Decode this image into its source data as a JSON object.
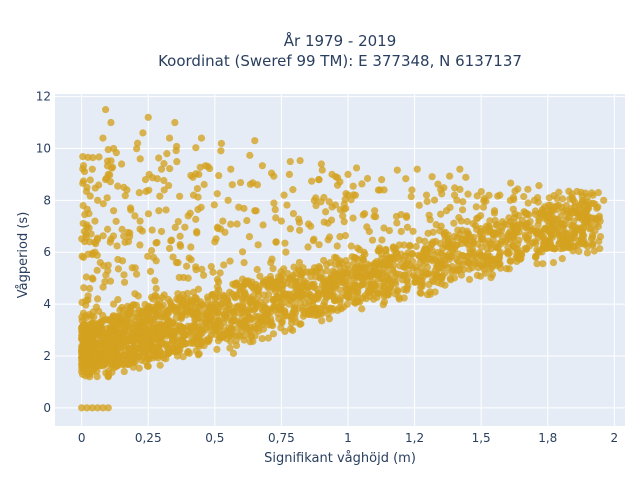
{
  "chart_data": {
    "type": "scatter",
    "title_lines": [
      "År 1979 - 2019",
      "Koordinat (Sweref 99 TM): E 377348, N 6137137"
    ],
    "xlabel": "Signifikant våghöjd (m)",
    "ylabel": "Vågperiod (s)",
    "xlim": [
      -0.1,
      2.04
    ],
    "ylim": [
      -0.7,
      12.1
    ],
    "x_ticks": [
      {
        "value": 0,
        "label": "0"
      },
      {
        "value": 0.25,
        "label": "0,25"
      },
      {
        "value": 0.5,
        "label": "0,5"
      },
      {
        "value": 0.75,
        "label": "0,75"
      },
      {
        "value": 1,
        "label": "1"
      },
      {
        "value": 1.25,
        "label": "1,2"
      },
      {
        "value": 1.5,
        "label": "1,5"
      },
      {
        "value": 1.75,
        "label": "1,8"
      },
      {
        "value": 2,
        "label": "2"
      }
    ],
    "y_ticks": [
      {
        "value": 0,
        "label": "0"
      },
      {
        "value": 2,
        "label": "2"
      },
      {
        "value": 4,
        "label": "4"
      },
      {
        "value": 6,
        "label": "6"
      },
      {
        "value": 8,
        "label": "8"
      },
      {
        "value": 10,
        "label": "10"
      },
      {
        "value": 12,
        "label": "12"
      }
    ],
    "grid": true,
    "marker_color": "#d4a21f",
    "marker_opacity": 0.78,
    "plot_bg": "#e5ecf6",
    "grid_color": "#ffffff",
    "points": [
      [
        0.0,
        0.0
      ],
      [
        0.02,
        0.0
      ],
      [
        0.04,
        0.0
      ],
      [
        0.06,
        0.0
      ],
      [
        0.08,
        0.0
      ],
      [
        0.1,
        0.0
      ],
      [
        0.0,
        1.4
      ],
      [
        0.02,
        1.8
      ],
      [
        0.03,
        1.2
      ],
      [
        0.05,
        2.4
      ],
      [
        0.02,
        3.1
      ],
      [
        0.06,
        4.2
      ],
      [
        0.04,
        5.0
      ],
      [
        0.03,
        6.4
      ],
      [
        0.05,
        7.2
      ],
      [
        0.02,
        8.5
      ],
      [
        0.04,
        9.2
      ],
      [
        0.06,
        8.0
      ],
      [
        0.03,
        4.6
      ],
      [
        0.05,
        6.0
      ],
      [
        0.01,
        6.8
      ],
      [
        0.07,
        5.6
      ],
      [
        0.1,
        1.2
      ],
      [
        0.1,
        2.0
      ],
      [
        0.11,
        3.0
      ],
      [
        0.12,
        4.0
      ],
      [
        0.1,
        5.5
      ],
      [
        0.11,
        6.5
      ],
      [
        0.12,
        7.6
      ],
      [
        0.1,
        9.0
      ],
      [
        0.08,
        10.4
      ],
      [
        0.09,
        11.5
      ],
      [
        0.11,
        11.0
      ],
      [
        0.12,
        10.0
      ],
      [
        0.09,
        8.8
      ],
      [
        0.13,
        1.6
      ],
      [
        0.14,
        2.8
      ],
      [
        0.15,
        9.4
      ],
      [
        0.16,
        1.4
      ],
      [
        0.18,
        2.2
      ],
      [
        0.17,
        3.4
      ],
      [
        0.2,
        4.4
      ],
      [
        0.19,
        5.4
      ],
      [
        0.18,
        6.6
      ],
      [
        0.2,
        7.4
      ],
      [
        0.17,
        8.4
      ],
      [
        0.22,
        9.6
      ],
      [
        0.23,
        10.6
      ],
      [
        0.25,
        11.2
      ],
      [
        0.21,
        10.2
      ],
      [
        0.24,
        8.8
      ],
      [
        0.25,
        1.6
      ],
      [
        0.26,
        2.6
      ],
      [
        0.27,
        3.8
      ],
      [
        0.28,
        4.6
      ],
      [
        0.27,
        5.8
      ],
      [
        0.3,
        6.8
      ],
      [
        0.29,
        7.6
      ],
      [
        0.31,
        8.4
      ],
      [
        0.3,
        9.2
      ],
      [
        0.33,
        10.4
      ],
      [
        0.32,
        9.8
      ],
      [
        0.35,
        11.0
      ],
      [
        0.36,
        2.0
      ],
      [
        0.37,
        3.0
      ],
      [
        0.38,
        4.2
      ],
      [
        0.4,
        5.0
      ],
      [
        0.41,
        6.2
      ],
      [
        0.4,
        7.4
      ],
      [
        0.42,
        8.2
      ],
      [
        0.44,
        9.0
      ],
      [
        0.45,
        10.4
      ],
      [
        0.46,
        2.4
      ],
      [
        0.48,
        3.4
      ],
      [
        0.5,
        4.0
      ],
      [
        0.52,
        5.2
      ],
      [
        0.5,
        6.4
      ],
      [
        0.53,
        7.2
      ],
      [
        0.55,
        8.0
      ],
      [
        0.56,
        9.2
      ],
      [
        0.57,
        2.1
      ],
      [
        0.58,
        2.6
      ],
      [
        0.6,
        3.2
      ],
      [
        0.62,
        4.2
      ],
      [
        0.61,
        5.6
      ],
      [
        0.63,
        6.6
      ],
      [
        0.65,
        7.6
      ],
      [
        0.66,
        8.6
      ],
      [
        0.65,
        10.3
      ],
      [
        0.68,
        3.2
      ],
      [
        0.7,
        3.8
      ],
      [
        0.72,
        4.6
      ],
      [
        0.71,
        5.6
      ],
      [
        0.73,
        6.4
      ],
      [
        0.75,
        7.2
      ],
      [
        0.76,
        8.2
      ],
      [
        0.78,
        9.0
      ],
      [
        0.8,
        3.8
      ],
      [
        0.82,
        4.4
      ],
      [
        0.83,
        5.2
      ],
      [
        0.85,
        6.2
      ],
      [
        0.86,
        7.0
      ],
      [
        0.88,
        7.8
      ],
      [
        0.89,
        8.8
      ],
      [
        0.9,
        9.4
      ],
      [
        0.92,
        4.3
      ],
      [
        0.94,
        5.0
      ],
      [
        0.95,
        5.8
      ],
      [
        0.97,
        6.6
      ],
      [
        0.98,
        7.4
      ],
      [
        1.0,
        8.2
      ],
      [
        1.0,
        9.0
      ],
      [
        1.02,
        4.6
      ],
      [
        1.04,
        5.2
      ],
      [
        1.06,
        6.0
      ],
      [
        1.08,
        6.8
      ],
      [
        1.1,
        7.6
      ],
      [
        1.12,
        8.4
      ],
      [
        1.13,
        5.0
      ],
      [
        1.15,
        5.6
      ],
      [
        1.17,
        6.2
      ],
      [
        1.2,
        6.8
      ],
      [
        1.22,
        7.4
      ],
      [
        1.24,
        8.4
      ],
      [
        1.26,
        9.2
      ],
      [
        1.28,
        5.2
      ],
      [
        1.3,
        5.8
      ],
      [
        1.32,
        6.4
      ],
      [
        1.35,
        7.0
      ],
      [
        1.37,
        7.6
      ],
      [
        1.4,
        8.2
      ],
      [
        1.42,
        9.2
      ],
      [
        1.45,
        5.6
      ],
      [
        1.47,
        6.0
      ],
      [
        1.5,
        6.5
      ],
      [
        1.52,
        7.0
      ],
      [
        1.55,
        7.6
      ],
      [
        1.57,
        8.2
      ],
      [
        1.6,
        6.2
      ],
      [
        1.62,
        6.6
      ],
      [
        1.65,
        7.0
      ],
      [
        1.67,
        7.5
      ],
      [
        1.7,
        8.0
      ],
      [
        1.72,
        6.8
      ],
      [
        1.75,
        7.2
      ],
      [
        1.77,
        7.6
      ],
      [
        1.8,
        7.4
      ],
      [
        1.82,
        7.8
      ],
      [
        1.85,
        7.6
      ],
      [
        1.88,
        8.0
      ],
      [
        1.9,
        7.8
      ],
      [
        1.92,
        8.2
      ],
      [
        1.94,
        8.3
      ],
      [
        1.96,
        8.0
      ]
    ]
  }
}
